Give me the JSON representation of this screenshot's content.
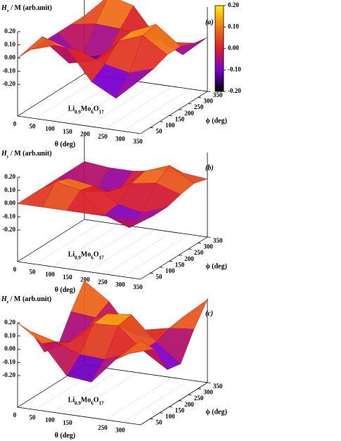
{
  "chart_data": [
    {
      "type": "surface",
      "annotation": "(a)",
      "zlabel_main": "H",
      "zlabel_sub": "x",
      "zlabel_rest": " / M (arb.unit)",
      "compound": [
        "Li",
        "0.9",
        "Mo",
        "6",
        "O",
        "17"
      ],
      "xlabel": "θ (deg)",
      "ylabel": "ϕ (deg)",
      "x": [
        0,
        70,
        140,
        210,
        280,
        350
      ],
      "y": [
        0,
        70,
        140,
        210,
        280,
        350
      ],
      "z": [
        [
          0,
          0,
          0,
          0,
          0,
          0
        ],
        [
          0.19,
          0.06,
          -0.14,
          -0.16,
          0.03,
          0.18
        ],
        [
          0.13,
          0.04,
          -0.1,
          -0.11,
          0.02,
          0.13
        ],
        [
          -0.1,
          -0.03,
          0.08,
          0.09,
          -0.02,
          -0.1
        ],
        [
          -0.2,
          -0.07,
          0.15,
          0.17,
          -0.03,
          -0.19
        ],
        [
          -0.03,
          -0.01,
          0.03,
          0.03,
          -0.01,
          -0.03
        ]
      ],
      "xlim": [
        0,
        350
      ],
      "ylim": [
        0,
        350
      ],
      "zlim": [
        -0.2,
        0.2
      ],
      "xticks": [
        0,
        50,
        100,
        150,
        200,
        250,
        300,
        350
      ],
      "yticks": [
        50,
        100,
        150,
        200,
        250,
        300,
        350
      ],
      "zticks": [
        {
          "value": 0.2,
          "label": "0.20"
        },
        {
          "value": 0.1,
          "label": "0.10"
        },
        {
          "value": 0,
          "label": "0.00"
        },
        {
          "value": -0.1,
          "label": "-0.10"
        },
        {
          "value": -0.2,
          "label": "-0.20"
        }
      ],
      "colormap": [
        "#000000",
        "#7a00d0",
        "#d81e2a",
        "#f07818",
        "#ffee00"
      ],
      "colorbar_ticks": [
        {
          "value": 0.2,
          "label": "0.20"
        },
        {
          "value": 0.1,
          "label": "0.10"
        },
        {
          "value": 0,
          "label": "0.00"
        },
        {
          "value": -0.1,
          "label": "-0.10"
        },
        {
          "value": -0.2,
          "label": "-0.20"
        }
      ]
    },
    {
      "type": "surface",
      "annotation": "(b)",
      "zlabel_main": "H",
      "zlabel_sub": "y",
      "zlabel_rest": " / M (arb.unit)",
      "compound": [
        "Li",
        "0.9",
        "Mo",
        "6",
        "O",
        "17"
      ],
      "xlabel": "θ (deg)",
      "ylabel": "ϕ (deg)",
      "x": [
        0,
        70,
        140,
        210,
        280,
        350
      ],
      "y": [
        0,
        70,
        140,
        210,
        280,
        350
      ],
      "z": [
        [
          0,
          0,
          0,
          0,
          0,
          0
        ],
        [
          0,
          0.13,
          0.09,
          -0.07,
          -0.14,
          -0.02
        ],
        [
          0,
          0.09,
          0.06,
          -0.05,
          -0.09,
          -0.02
        ],
        [
          0,
          -0.07,
          -0.05,
          0.04,
          0.07,
          0.01
        ],
        [
          0,
          -0.14,
          -0.09,
          0.07,
          0.14,
          0.02
        ],
        [
          0,
          -0.02,
          -0.02,
          0.01,
          0.03,
          0
        ]
      ],
      "xlim": [
        0,
        350
      ],
      "ylim": [
        0,
        350
      ],
      "zlim": [
        -0.2,
        0.2
      ],
      "xticks": [
        0,
        50,
        100,
        150,
        200,
        250,
        300,
        350
      ],
      "yticks": [
        50,
        100,
        150,
        200,
        250,
        300,
        350
      ],
      "zticks": [
        {
          "value": 0.2,
          "label": "0.20"
        },
        {
          "value": 0.1,
          "label": "0.10"
        },
        {
          "value": 0,
          "label": "0.00"
        },
        {
          "value": -0.1,
          "label": "-0.10"
        },
        {
          "value": -0.2,
          "label": "-0.20"
        }
      ]
    },
    {
      "type": "surface",
      "annotation": "(c)",
      "zlabel_main": "H",
      "zlabel_sub": "z",
      "zlabel_rest": " / M (arb.unit)",
      "compound": [
        "Li",
        "0.9",
        "Mo",
        "6",
        "O",
        "17"
      ],
      "xlabel": "θ (deg)",
      "ylabel": "ϕ (deg)",
      "x": [
        0,
        70,
        140,
        210,
        280,
        350
      ],
      "y": [
        0,
        70,
        140,
        210,
        280,
        350
      ],
      "z": [
        [
          0.2,
          0.07,
          -0.15,
          -0.17,
          0.03,
          0.2
        ],
        [
          0.07,
          0.02,
          -0.05,
          -0.06,
          0.01,
          0.07
        ],
        [
          -0.15,
          -0.05,
          0.12,
          0.13,
          -0.03,
          -0.15
        ],
        [
          -0.17,
          -0.06,
          0.13,
          0.15,
          -0.03,
          -0.17
        ],
        [
          0.03,
          0.01,
          -0.03,
          -0.03,
          0.01,
          0.03
        ],
        [
          0.2,
          0.07,
          -0.15,
          -0.17,
          0.03,
          0.19
        ]
      ],
      "xlim": [
        0,
        350
      ],
      "ylim": [
        0,
        350
      ],
      "zlim": [
        -0.2,
        0.2
      ],
      "xticks": [
        0,
        50,
        100,
        150,
        250,
        300
      ],
      "yticks": [
        50,
        100,
        150,
        200,
        250,
        300,
        350
      ],
      "zticks": [
        {
          "value": 0.2,
          "label": "0.20"
        },
        {
          "value": 0.1,
          "label": "0.10"
        },
        {
          "value": 0,
          "label": "0.00"
        },
        {
          "value": -0.1,
          "label": "-0.10"
        },
        {
          "value": -0.2,
          "label": "-0.20"
        }
      ]
    }
  ]
}
